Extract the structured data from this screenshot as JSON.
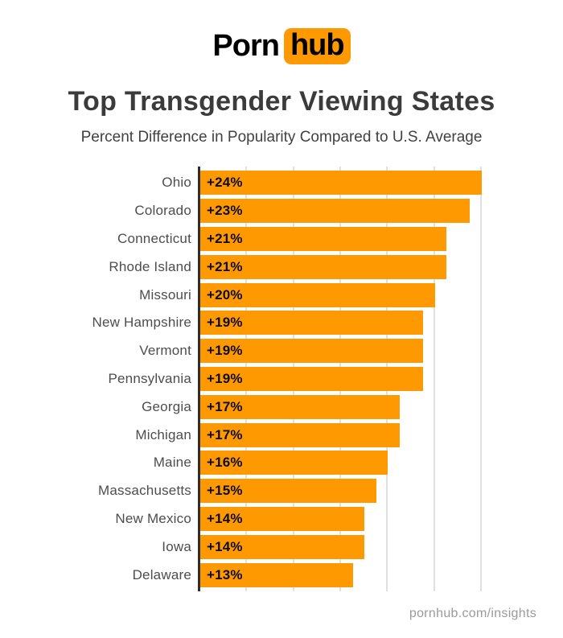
{
  "logo": {
    "part1": "Porn",
    "part2": "hub"
  },
  "header": {
    "title": "Top Transgender Viewing States",
    "subtitle": "Percent Difference in Popularity Compared to U.S. Average"
  },
  "footer": {
    "text": "pornhub.com/insights"
  },
  "colors": {
    "brand_orange": "#ff9902",
    "title_text": "#3b3b3b",
    "subtitle_text": "#414141",
    "state_label_text": "#4d4d4d",
    "bar_value_text": "#0c0c0c",
    "axis": "#2e2e2e",
    "gridline": "#e0e0e0",
    "footer_text": "#9a9a9a"
  },
  "chart_data": {
    "type": "bar",
    "orientation": "horizontal",
    "title": "Top Transgender Viewing States",
    "subtitle": "Percent Difference in Popularity Compared to U.S. Average",
    "categories": [
      "Ohio",
      "Colorado",
      "Connecticut",
      "Rhode Island",
      "Missouri",
      "New Hampshire",
      "Vermont",
      "Pennsylvania",
      "Georgia",
      "Michigan",
      "Maine",
      "Massachusetts",
      "New Mexico",
      "Iowa",
      "Delaware"
    ],
    "values": [
      24,
      23,
      21,
      21,
      20,
      19,
      19,
      19,
      17,
      17,
      16,
      15,
      14,
      14,
      13
    ],
    "bar_labels": [
      "+24%",
      "+23%",
      "+21%",
      "+21%",
      "+20%",
      "+19%",
      "+19%",
      "+19%",
      "+17%",
      "+17%",
      "+16%",
      "+15%",
      "+14%",
      "+14%",
      "+13%"
    ],
    "value_unit": "percent",
    "xlim": [
      0,
      24
    ],
    "gridline_interval": 4,
    "grid": true,
    "legend": false,
    "xlabel": "",
    "ylabel": ""
  }
}
